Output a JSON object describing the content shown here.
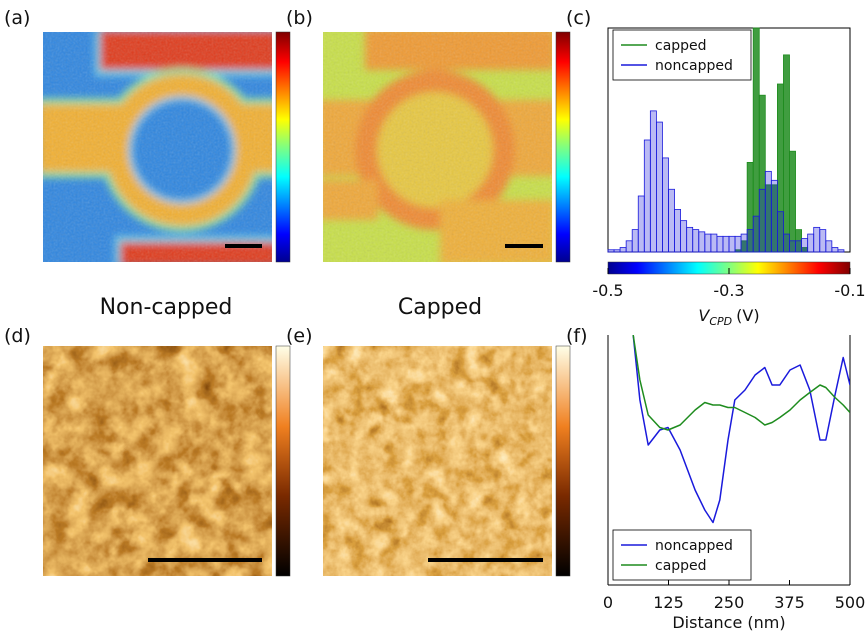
{
  "panel_labels": [
    "(a)",
    "(b)",
    "(c)",
    "(d)",
    "(e)",
    "(f)"
  ],
  "captions": [
    "Non-capped",
    "Capped"
  ],
  "chart_data": [
    {
      "type": "histogram",
      "bins": [
        -0.5,
        -0.49,
        -0.48,
        -0.47,
        -0.46,
        -0.45,
        -0.44,
        -0.43,
        -0.42,
        -0.41,
        -0.4,
        -0.39,
        -0.38,
        -0.37,
        -0.36,
        -0.35,
        -0.34,
        -0.33,
        -0.32,
        -0.31,
        -0.3,
        -0.29,
        -0.28,
        -0.27,
        -0.26,
        -0.25,
        -0.24,
        -0.23,
        -0.22,
        -0.21,
        -0.2,
        -0.19,
        -0.18,
        -0.17,
        -0.16,
        -0.15,
        -0.14,
        -0.13,
        -0.12,
        -0.11,
        -0.1
      ],
      "series": [
        {
          "name": "capped",
          "color": "#1e8c1e",
          "values": [
            0,
            0,
            0,
            0,
            0,
            0,
            0,
            0,
            0,
            0,
            0,
            0,
            0,
            0,
            0,
            0,
            0,
            0,
            0,
            0,
            0,
            1,
            5,
            40,
            100,
            70,
            30,
            30,
            75,
            88,
            45,
            10,
            2,
            0,
            0,
            0,
            0,
            0,
            0,
            0
          ]
        },
        {
          "name": "noncapped",
          "color": "#1a1adc",
          "values": [
            1,
            1,
            2,
            5,
            10,
            25,
            50,
            63,
            58,
            42,
            28,
            19,
            14,
            11,
            10,
            9,
            8,
            8,
            7,
            7,
            7,
            7,
            8,
            10,
            16,
            28,
            36,
            32,
            18,
            8,
            5,
            5,
            6,
            8,
            11,
            10,
            5,
            2,
            1,
            0
          ]
        }
      ],
      "xlim": [
        -0.5,
        -0.1
      ],
      "xticks": [
        -0.5,
        -0.3,
        -0.1
      ],
      "ylim": [
        0,
        100
      ],
      "xlabel": "V",
      "xlabel_sub": "CPD",
      "xlabel_unit": "(V)",
      "legend": "upper left"
    },
    {
      "type": "line",
      "x": [
        52,
        66,
        83,
        107,
        124,
        149,
        180,
        200,
        217,
        231,
        248,
        262,
        283,
        304,
        324,
        339,
        355,
        376,
        397,
        417,
        438,
        450,
        469,
        486,
        500
      ],
      "series": [
        {
          "name": "noncapped",
          "color": "#1a1adc",
          "values": [
            100,
            74,
            56,
            62,
            63,
            54,
            38,
            30,
            25,
            34,
            58,
            74,
            78,
            84,
            87,
            80,
            80,
            86,
            88,
            78,
            58,
            58,
            76,
            91,
            80
          ]
        },
        {
          "name": "capped",
          "color": "#1e8c1e",
          "values": [
            100,
            82,
            68,
            63,
            62,
            64,
            70,
            73,
            72,
            72,
            71,
            71,
            69,
            67,
            64,
            65,
            67,
            70,
            74,
            77,
            80,
            79,
            75,
            72,
            69
          ]
        }
      ],
      "xlim": [
        0,
        500
      ],
      "xticks": [
        0,
        125,
        250,
        375,
        500
      ],
      "ylim": [
        0,
        100
      ],
      "xlabel": "Distance (nm)",
      "legend": "lower left"
    }
  ]
}
